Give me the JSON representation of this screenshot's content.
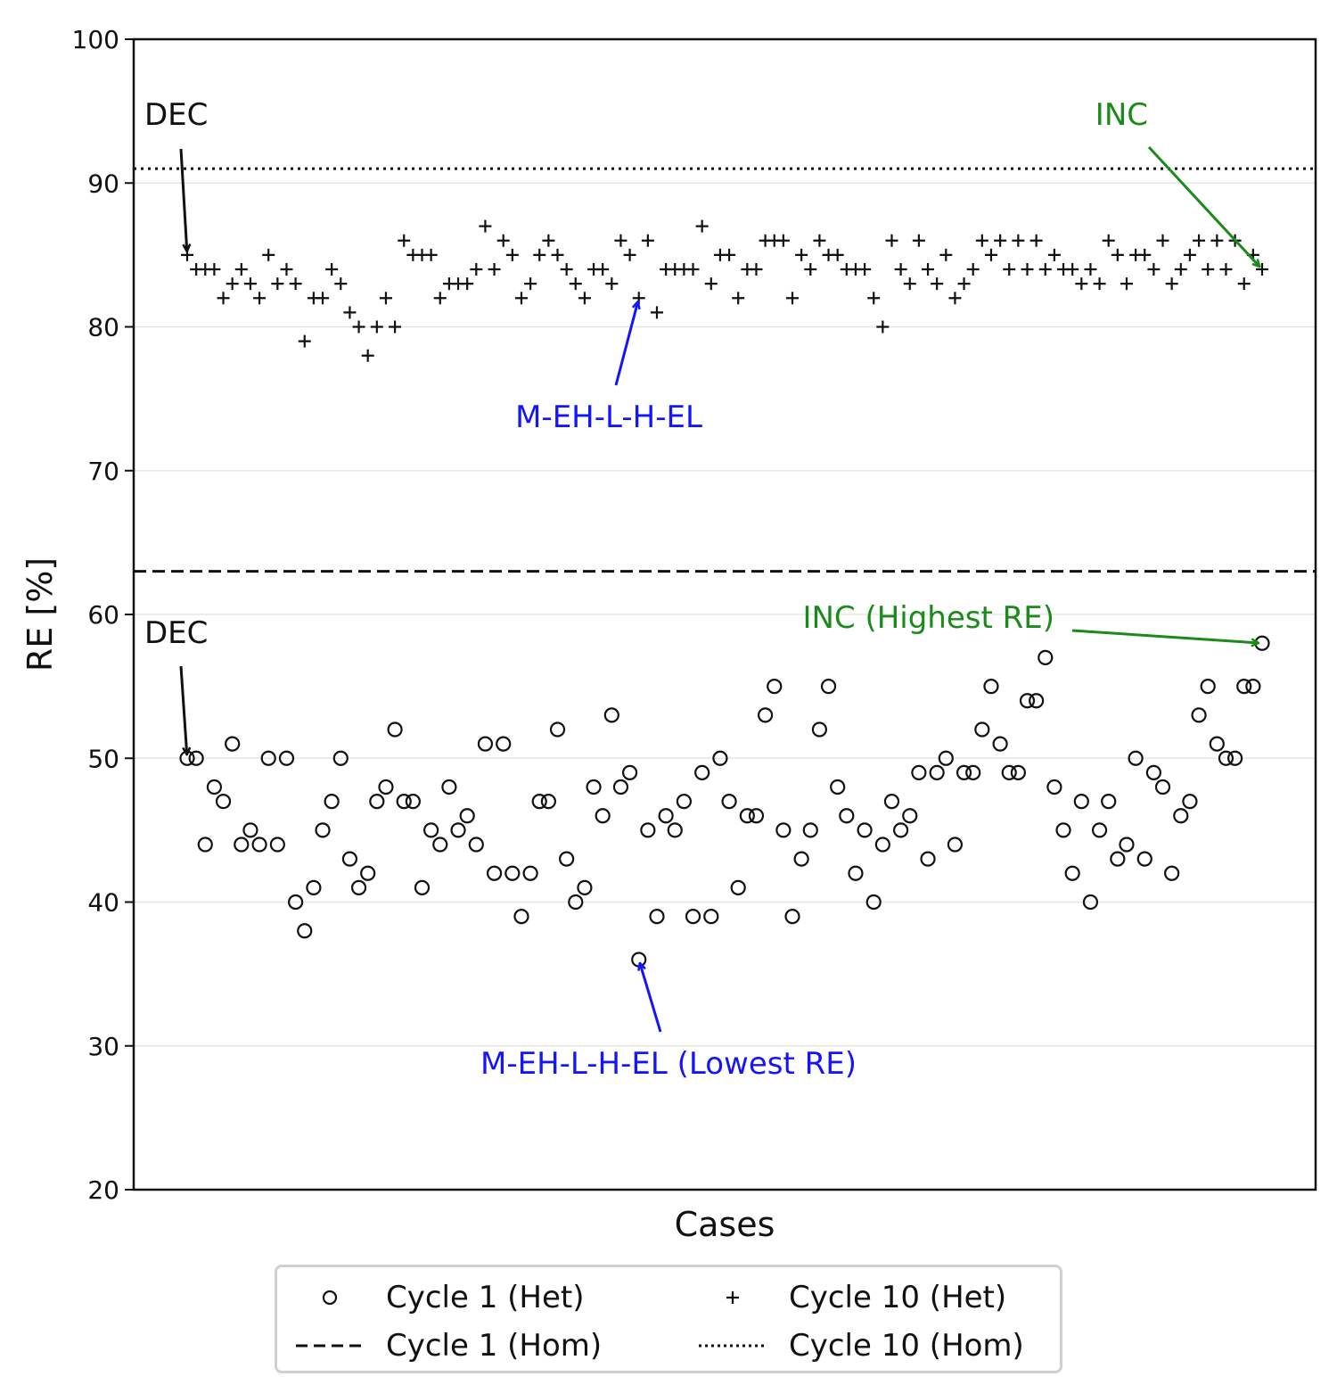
{
  "chart_data": {
    "type": "scatter",
    "title": "",
    "xlabel": "Cases",
    "ylabel": "RE [%]",
    "ylim": [
      20,
      100
    ],
    "yticks": [
      20,
      30,
      40,
      50,
      60,
      70,
      80,
      90,
      100
    ],
    "grid": "horizontal",
    "series": [
      {
        "name": "Cycle 1 (Het)",
        "marker": "circle",
        "values": [
          50,
          50,
          44,
          48,
          47,
          51,
          44,
          45,
          44,
          50,
          44,
          50,
          40,
          38,
          41,
          45,
          47,
          50,
          43,
          41,
          42,
          47,
          48,
          52,
          47,
          47,
          41,
          45,
          44,
          48,
          45,
          46,
          44,
          51,
          42,
          51,
          42,
          39,
          42,
          47,
          47,
          52,
          43,
          40,
          41,
          48,
          46,
          53,
          48,
          49,
          36,
          45,
          39,
          46,
          45,
          47,
          39,
          49,
          39,
          50,
          47,
          41,
          46,
          46,
          53,
          55,
          45,
          39,
          43,
          45,
          52,
          55,
          48,
          46,
          42,
          45,
          40,
          44,
          47,
          45,
          46,
          49,
          43,
          49,
          50,
          44,
          49,
          49,
          52,
          55,
          51,
          49,
          49,
          54,
          54,
          57,
          48,
          45,
          42,
          47,
          40,
          45,
          47,
          43,
          44,
          50,
          43,
          49,
          48,
          42,
          46,
          47,
          53,
          55,
          51,
          50,
          50,
          55,
          55,
          58
        ]
      },
      {
        "name": "Cycle 10 (Het)",
        "marker": "plus",
        "values": [
          85,
          84,
          84,
          84,
          82,
          83,
          84,
          83,
          82,
          85,
          83,
          84,
          83,
          79,
          82,
          82,
          84,
          83,
          81,
          80,
          78,
          80,
          82,
          80,
          86,
          85,
          85,
          85,
          82,
          83,
          83,
          83,
          84,
          87,
          84,
          86,
          85,
          82,
          83,
          85,
          86,
          85,
          84,
          83,
          82,
          84,
          84,
          83,
          86,
          85,
          82,
          86,
          81,
          84,
          84,
          84,
          84,
          87,
          83,
          85,
          85,
          82,
          84,
          84,
          86,
          86,
          86,
          82,
          85,
          84,
          86,
          85,
          85,
          84,
          84,
          84,
          82,
          80,
          86,
          84,
          83,
          86,
          84,
          83,
          85,
          82,
          83,
          84,
          86,
          85,
          86,
          84,
          86,
          84,
          86,
          84,
          85,
          84,
          84,
          83,
          84,
          83,
          86,
          85,
          83,
          85,
          85,
          84,
          86,
          83,
          84,
          85,
          86,
          84,
          86,
          84,
          86,
          83,
          85,
          84
        ]
      }
    ],
    "reference_lines": [
      {
        "name": "Cycle 1 (Hom)",
        "style": "dashed",
        "y": 63
      },
      {
        "name": "Cycle 10 (Hom)",
        "style": "dotted",
        "y": 91
      }
    ],
    "annotations": [
      {
        "text": "DEC",
        "color": "#111111",
        "target_case": 1,
        "target_y": 85,
        "text_y": 93
      },
      {
        "text": "INC",
        "color": "#1a8a1a",
        "target_case": 120,
        "target_y": 84,
        "text_y": 93
      },
      {
        "text": "M-EH-L-H-EL",
        "color": "#1414ff",
        "target_case": 51,
        "target_y": 82,
        "text_y": 72
      },
      {
        "text": "DEC",
        "color": "#111111",
        "target_case": 1,
        "target_y": 50,
        "text_y": 57
      },
      {
        "text": "INC (Highest RE)",
        "color": "#1a8a1a",
        "target_case": 120,
        "target_y": 58,
        "text_y": 59
      },
      {
        "text": "M-EH-L-H-EL (Lowest RE)",
        "color": "#1414ff",
        "target_case": 51,
        "target_y": 36,
        "text_y": 27
      }
    ],
    "legend": {
      "position": "bottom-center",
      "items": [
        "Cycle 1 (Het)",
        "Cycle 10 (Het)",
        "Cycle 1 (Hom)",
        "Cycle 10 (Hom)"
      ]
    }
  }
}
